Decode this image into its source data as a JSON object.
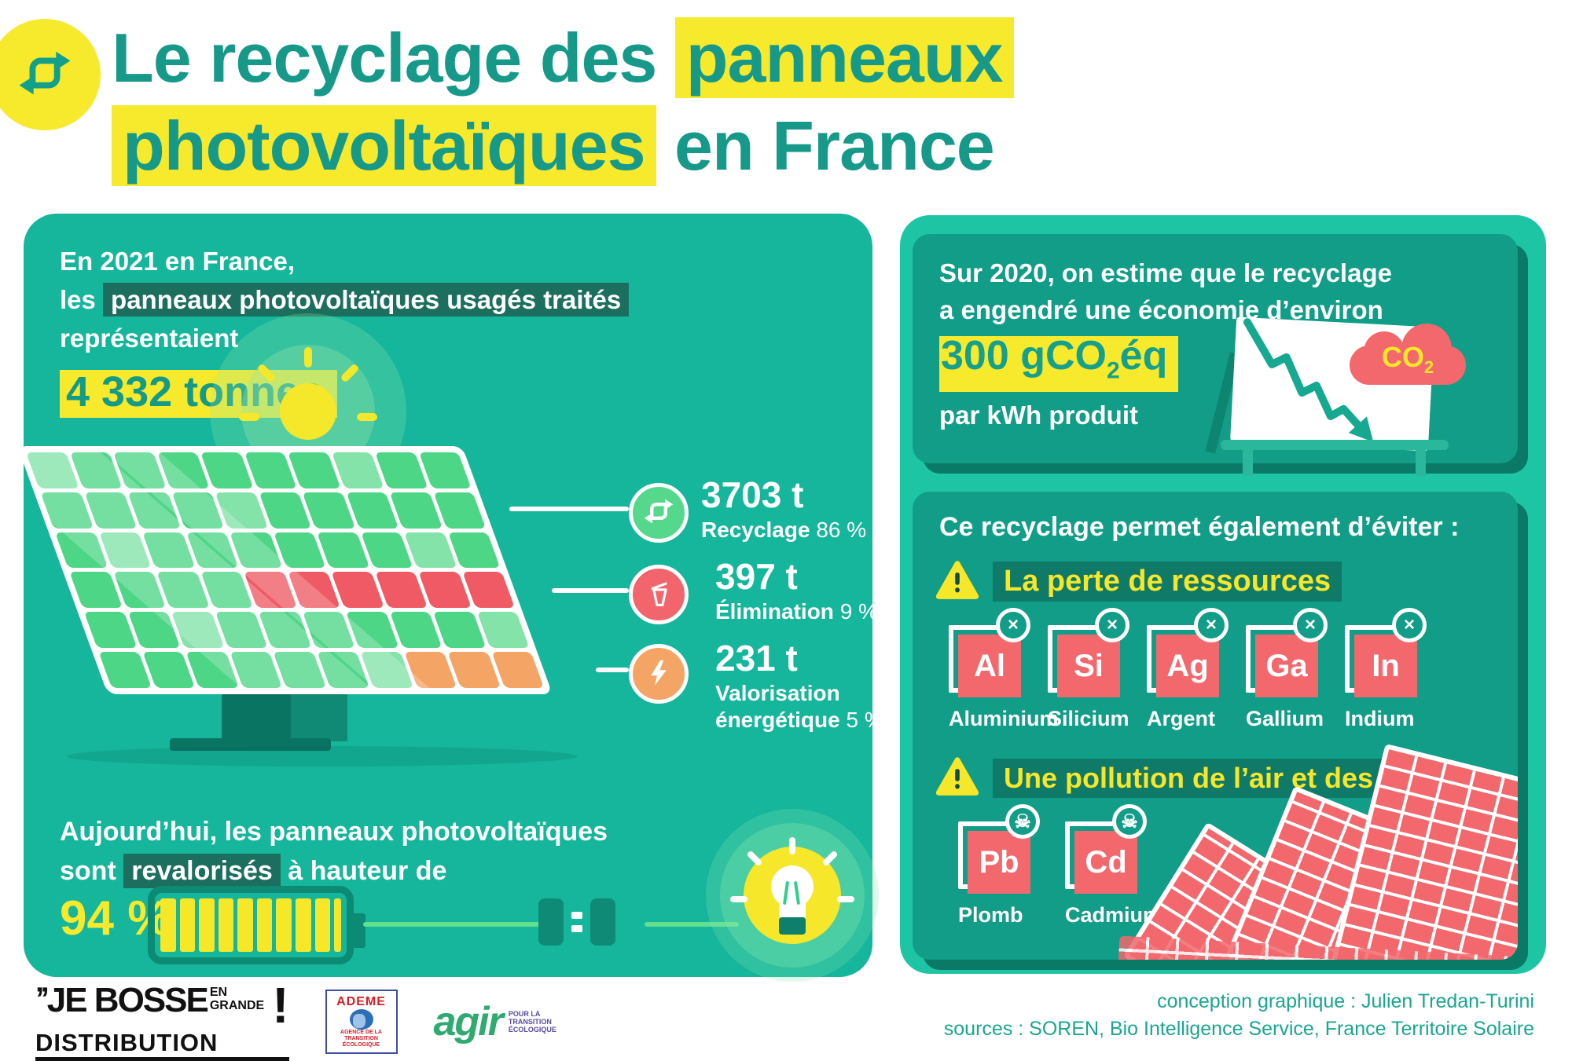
{
  "colors": {
    "teal_title": "#17998a",
    "yellow": "#f7ea2d",
    "left_card": "#15b69b",
    "right_outer": "#1ec5a5",
    "right_inner": "#119d87",
    "inner_rim": "#0a7a66",
    "dark_highlight": "#1c6e5f",
    "stat_green": "#55d88b",
    "stat_red": "#f2656c",
    "stat_orange": "#f4a465",
    "cell_red": "#ef5a64",
    "credits_teal": "#1aa690"
  },
  "header": {
    "icon": "recycle-icon",
    "line1_plain": "Le recyclage des ",
    "line1_hl": "panneaux",
    "line2_hl": "photovoltaïques",
    "line2_plain": " en France"
  },
  "left_card": {
    "intro": {
      "line1": "En 2021 en France,",
      "line2_prefix": "les ",
      "line2_hl": "panneaux photovoltaïques usagés traités",
      "line3": "représentaient",
      "tonnage": "4 332 tonnes"
    },
    "stats": [
      {
        "value": "3703 t",
        "label": "Recyclage",
        "pct": "86 %",
        "color": "#55d88b",
        "icon": "recycle-icon"
      },
      {
        "value": "397 t",
        "label": "Élimination",
        "pct": "9 %",
        "color": "#f2656c",
        "icon": "trash-icon"
      },
      {
        "value": "231 t",
        "label": "Valorisation énergétique",
        "pct": "5 %",
        "color": "#f4a465",
        "icon": "lightning-icon"
      }
    ],
    "panel": {
      "rows": 6,
      "cols": 10,
      "red_row": 3,
      "red_cols": [
        4,
        5,
        6,
        7,
        8,
        9
      ],
      "orange_row": 5,
      "orange_cols": [
        7,
        8,
        9
      ],
      "base_color": "#4ed687",
      "light_color": "#83e3a8",
      "red_color": "#ef5a64",
      "orange_color": "#f4a465"
    },
    "reval": {
      "line1": "Aujourd’hui, les panneaux photovoltaïques",
      "line2_prefix": "sont ",
      "line2_hl": "revalorisés",
      "line2_suffix": " à hauteur de",
      "pct": "94 %",
      "battery_bars": 10
    }
  },
  "right_top": {
    "line1": "Sur 2020, on estime que le recyclage",
    "line2": "a engendré une économie d’environ",
    "value_main": "300 gCO",
    "value_sub": "2",
    "value_suffix": "éq",
    "line3": "par kWh produit",
    "cloud_label": "CO",
    "cloud_sub": "2"
  },
  "right_bottom": {
    "title": "Ce recyclage permet également d’éviter :",
    "section1": {
      "heading": "La perte de ressources",
      "badge": "×",
      "elements": [
        {
          "symbol": "Al",
          "name": "Aluminium"
        },
        {
          "symbol": "Si",
          "name": "Silicium"
        },
        {
          "symbol": "Ag",
          "name": "Argent"
        },
        {
          "symbol": "Ga",
          "name": "Gallium"
        },
        {
          "symbol": "In",
          "name": "Indium"
        }
      ]
    },
    "section2": {
      "heading": "Une pollution de l’air et des sols",
      "badge": "☠",
      "elements": [
        {
          "symbol": "Pb",
          "name": "Plomb"
        },
        {
          "symbol": "Cd",
          "name": "Cadmium"
        }
      ]
    }
  },
  "footer": {
    "logo_jebosse": {
      "quotes": "’’",
      "main": "JE BOSSE",
      "small1": "EN",
      "small2": "GRANDE",
      "bottom": "DISTRIBUTION",
      "excl": "!"
    },
    "logo_ademe": {
      "name": "ADEME",
      "sub1": "AGENCE DE LA",
      "sub2": "TRANSITION",
      "sub3": "ÉCOLOGIQUE"
    },
    "logo_agir": {
      "name": "agir",
      "sub1": "POUR LA",
      "sub2": "TRANSITION",
      "sub3": "ÉCOLOGIQUE"
    },
    "credits_line1": "conception graphique : Julien Tredan-Turini",
    "credits_line2": "sources : SOREN, Bio Intelligence Service, France Territoire Solaire"
  }
}
